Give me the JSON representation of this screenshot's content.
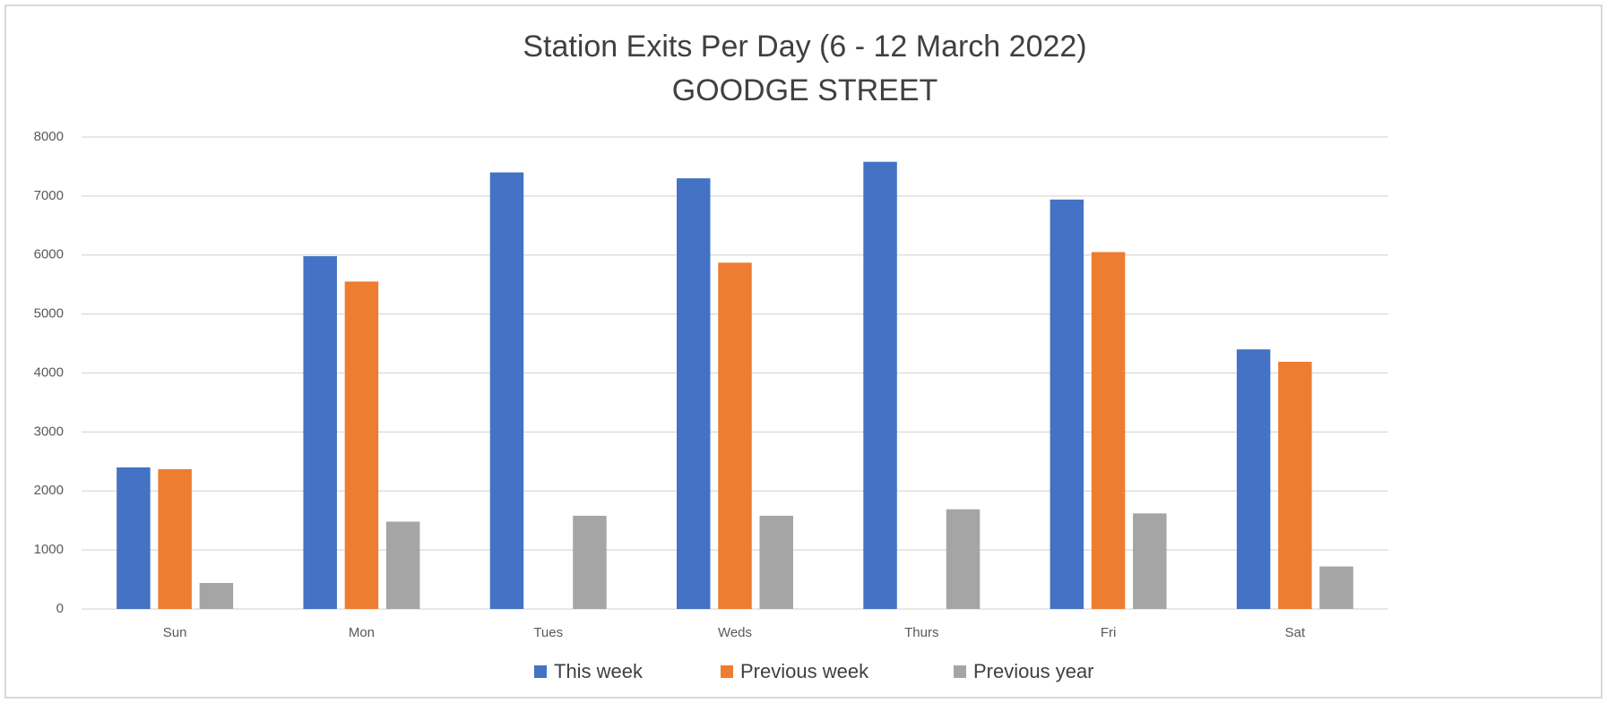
{
  "chart_data": {
    "type": "bar",
    "title": "Station Exits Per Day (6 - 12 March 2022)",
    "subtitle": "GOODGE STREET",
    "categories": [
      "Sun",
      "Mon",
      "Tues",
      "Weds",
      "Thurs",
      "Fri",
      "Sat"
    ],
    "series": [
      {
        "name": "This week",
        "color": "#4472c4",
        "values": [
          2400,
          5980,
          7400,
          7300,
          7580,
          6940,
          4400
        ]
      },
      {
        "name": "Previous week",
        "color": "#ed7d31",
        "values": [
          2370,
          5550,
          null,
          5870,
          null,
          6050,
          4190
        ]
      },
      {
        "name": "Previous year",
        "color": "#a5a5a5",
        "values": [
          440,
          1480,
          1580,
          1580,
          1690,
          1620,
          720
        ]
      }
    ],
    "ylim": [
      0,
      8000
    ],
    "yticks": [
      0,
      1000,
      2000,
      3000,
      4000,
      5000,
      6000,
      7000,
      8000
    ],
    "grid": true,
    "legend": "bottom"
  }
}
